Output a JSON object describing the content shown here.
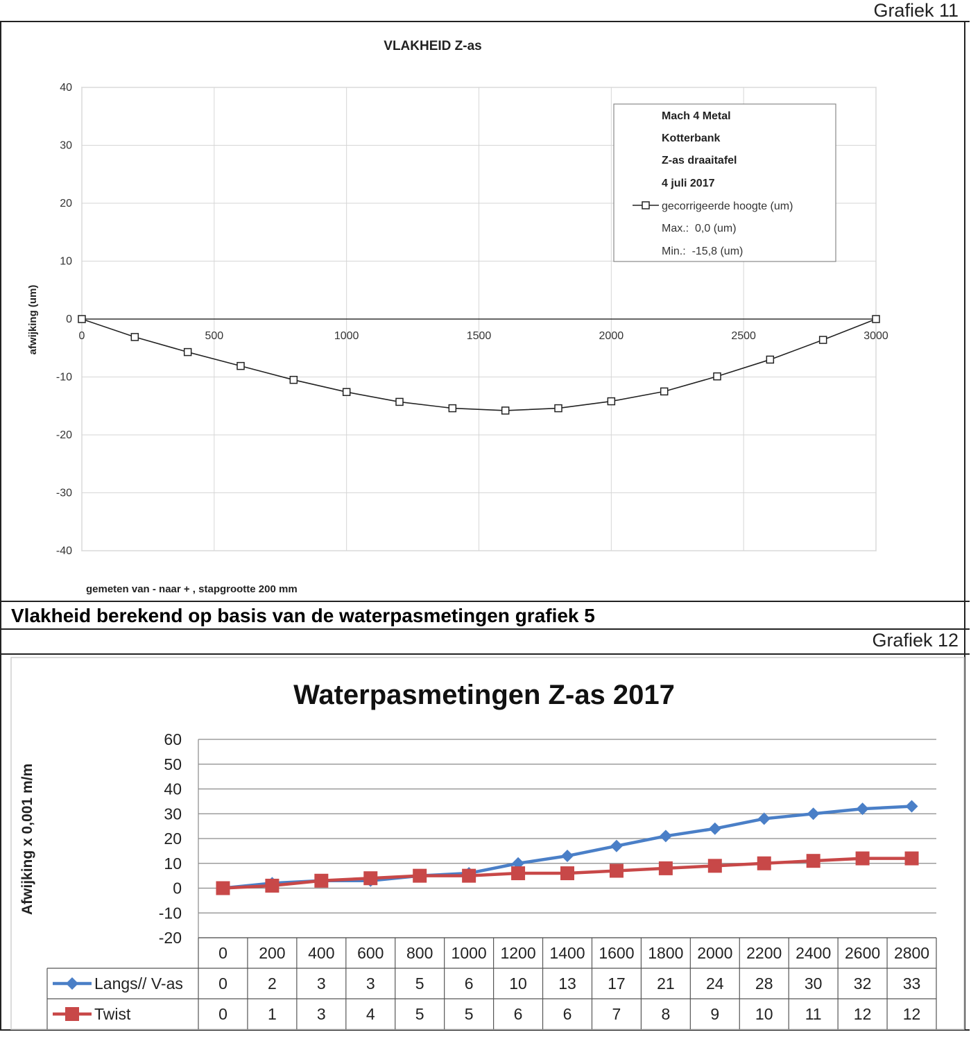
{
  "page": {
    "grafiek_11_label": "Grafiek 11",
    "grafiek_12_label": "Grafiek 12",
    "section_caption": "Vlakheid berekend op basis van de waterpasmetingen grafiek 5"
  },
  "chart_data": [
    {
      "type": "line",
      "title": "VLAKHEID Z-as",
      "ylabel": "afwijking (um)",
      "xlabel": "",
      "xlim": [
        0,
        3000
      ],
      "ylim": [
        -40,
        40
      ],
      "xticks": [
        0,
        500,
        1000,
        1500,
        2000,
        2500,
        3000
      ],
      "yticks": [
        40,
        30,
        20,
        10,
        0,
        -10,
        -20,
        -30,
        -40
      ],
      "grid": true,
      "legend_position": "top-right",
      "legend_lines": [
        "Mach 4 Metal",
        "Kotterbank",
        "Z-as draaitafel",
        "4 juli 2017"
      ],
      "legend_series": "gecorrigeerde hoogte (um)",
      "legend_max": "Max.:  0,0 (um)",
      "legend_min": "Min.:  -15,8 (um)",
      "footnote": "gemeten van - naar + , stapgrootte 200 mm",
      "series": [
        {
          "name": "gecorrigeerde hoogte (um)",
          "color": "#222222",
          "marker": "square-open",
          "x": [
            0,
            200,
            400,
            600,
            800,
            1000,
            1200,
            1400,
            1600,
            1800,
            2000,
            2200,
            2400,
            2600,
            2800,
            3000
          ],
          "y": [
            0,
            -3.1,
            -5.7,
            -8.1,
            -10.5,
            -12.6,
            -14.3,
            -15.4,
            -15.8,
            -15.4,
            -14.2,
            -12.5,
            -9.9,
            -7.0,
            -3.6,
            0
          ]
        }
      ]
    },
    {
      "type": "line",
      "title": "Waterpasmetingen Z-as 2017",
      "ylabel": "Afwijking x 0,001 m/m",
      "xlabel": "",
      "ylim": [
        -20,
        60
      ],
      "yticks": [
        60,
        50,
        40,
        30,
        20,
        10,
        0,
        -10,
        -20
      ],
      "grid": true,
      "legend_position": "data-table",
      "categories": [
        "0",
        "200",
        "400",
        "600",
        "800",
        "1000",
        "1200",
        "1400",
        "1600",
        "1800",
        "2000",
        "2200",
        "2400",
        "2600",
        "2800"
      ],
      "series": [
        {
          "name": "Langs// V-as",
          "color": "#4a7fc7",
          "marker": "diamond",
          "values": [
            0,
            2,
            3,
            3,
            5,
            6,
            10,
            13,
            17,
            21,
            24,
            28,
            30,
            32,
            33
          ]
        },
        {
          "name": "Twist",
          "color": "#c84848",
          "marker": "square",
          "values": [
            0,
            1,
            3,
            4,
            5,
            5,
            6,
            6,
            7,
            8,
            9,
            10,
            11,
            12,
            12
          ]
        }
      ]
    }
  ]
}
